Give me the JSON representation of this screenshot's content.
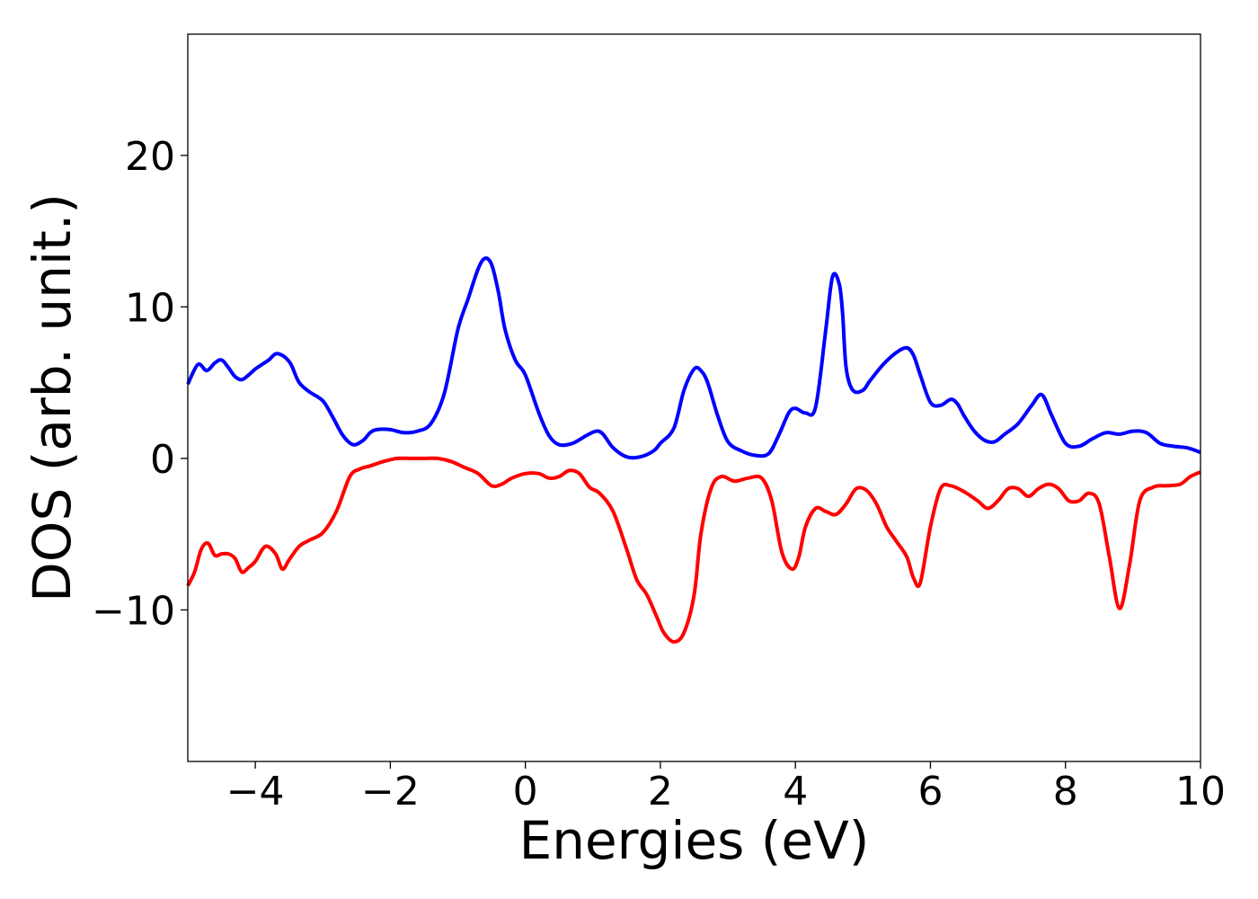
{
  "chart_data": {
    "type": "line",
    "title": "",
    "xlabel": "Energies (eV)",
    "ylabel": "DOS (arb. unit.)",
    "xlim": [
      -5,
      10
    ],
    "ylim": [
      -20,
      28
    ],
    "xticks": [
      -4,
      -2,
      0,
      2,
      4,
      6,
      8,
      10
    ],
    "yticks": [
      -10,
      0,
      10,
      20
    ],
    "x_tick_labels": [
      "−4",
      "−2",
      "0",
      "2",
      "4",
      "6",
      "8",
      "10"
    ],
    "y_tick_labels": [
      "−10",
      "0",
      "10",
      "20"
    ],
    "grid": false,
    "legend": "none",
    "series": [
      {
        "color": "#0000ff",
        "x": [
          -5.0,
          -4.85,
          -4.72,
          -4.6,
          -4.5,
          -4.4,
          -4.3,
          -4.2,
          -4.1,
          -4.0,
          -3.9,
          -3.8,
          -3.7,
          -3.6,
          -3.5,
          -3.45,
          -3.35,
          -3.2,
          -3.0,
          -2.85,
          -2.7,
          -2.55,
          -2.4,
          -2.3,
          -2.2,
          -2.0,
          -1.8,
          -1.6,
          -1.4,
          -1.2,
          -1.0,
          -0.85,
          -0.7,
          -0.6,
          -0.5,
          -0.4,
          -0.3,
          -0.15,
          0.0,
          0.2,
          0.35,
          0.5,
          0.7,
          0.9,
          1.05,
          1.15,
          1.3,
          1.5,
          1.7,
          1.9,
          2.0,
          2.2,
          2.35,
          2.5,
          2.6,
          2.7,
          2.85,
          3.0,
          3.2,
          3.4,
          3.6,
          3.75,
          3.9,
          4.0,
          4.15,
          4.3,
          4.45,
          4.55,
          4.65,
          4.7,
          4.75,
          4.85,
          5.0,
          5.1,
          5.3,
          5.5,
          5.65,
          5.75,
          5.85,
          6.0,
          6.15,
          6.3,
          6.4,
          6.5,
          6.65,
          6.8,
          6.95,
          7.1,
          7.3,
          7.5,
          7.65,
          7.8,
          8.0,
          8.2,
          8.4,
          8.6,
          8.8,
          9.0,
          9.2,
          9.4,
          9.6,
          9.8,
          10.0
        ],
        "y": [
          4.9,
          6.2,
          5.8,
          6.3,
          6.5,
          6.0,
          5.4,
          5.2,
          5.5,
          5.9,
          6.2,
          6.5,
          6.9,
          6.8,
          6.4,
          6.0,
          5.0,
          4.4,
          3.8,
          2.7,
          1.5,
          0.9,
          1.2,
          1.7,
          1.9,
          1.9,
          1.7,
          1.8,
          2.3,
          4.3,
          8.5,
          10.5,
          12.5,
          13.2,
          12.8,
          11.0,
          8.5,
          6.5,
          5.5,
          3.0,
          1.5,
          0.9,
          1.0,
          1.5,
          1.8,
          1.6,
          0.7,
          0.1,
          0.1,
          0.5,
          1.0,
          2.0,
          4.5,
          5.9,
          5.8,
          5.0,
          2.8,
          1.1,
          0.5,
          0.2,
          0.3,
          1.5,
          3.0,
          3.3,
          3.0,
          3.4,
          8.5,
          12.0,
          11.5,
          9.5,
          6.0,
          4.5,
          4.5,
          5.1,
          6.2,
          7.0,
          7.3,
          6.8,
          5.5,
          3.7,
          3.5,
          3.9,
          3.6,
          2.8,
          1.8,
          1.2,
          1.1,
          1.6,
          2.3,
          3.5,
          4.2,
          2.8,
          1.0,
          0.8,
          1.3,
          1.7,
          1.6,
          1.8,
          1.7,
          1.0,
          0.8,
          0.7,
          0.4
        ]
      },
      {
        "color": "#ff0000",
        "x": [
          -5.0,
          -4.9,
          -4.8,
          -4.7,
          -4.6,
          -4.5,
          -4.4,
          -4.3,
          -4.2,
          -4.1,
          -4.0,
          -3.85,
          -3.7,
          -3.6,
          -3.5,
          -3.35,
          -3.2,
          -3.0,
          -2.8,
          -2.6,
          -2.45,
          -2.3,
          -2.1,
          -1.9,
          -1.7,
          -1.5,
          -1.3,
          -1.1,
          -0.9,
          -0.7,
          -0.5,
          -0.35,
          -0.2,
          0.0,
          0.2,
          0.35,
          0.5,
          0.65,
          0.8,
          0.95,
          1.1,
          1.3,
          1.5,
          1.65,
          1.8,
          1.95,
          2.05,
          2.2,
          2.35,
          2.5,
          2.6,
          2.75,
          2.9,
          3.1,
          3.3,
          3.5,
          3.65,
          3.8,
          3.95,
          4.05,
          4.15,
          4.3,
          4.45,
          4.6,
          4.75,
          4.9,
          5.05,
          5.2,
          5.35,
          5.5,
          5.65,
          5.75,
          5.85,
          6.0,
          6.15,
          6.3,
          6.5,
          6.7,
          6.85,
          7.0,
          7.15,
          7.3,
          7.45,
          7.6,
          7.75,
          7.9,
          8.05,
          8.2,
          8.35,
          8.5,
          8.65,
          8.8,
          8.95,
          9.1,
          9.3,
          9.5,
          9.7,
          9.85,
          10.0
        ],
        "y": [
          -8.4,
          -7.5,
          -6.0,
          -5.6,
          -6.4,
          -6.3,
          -6.3,
          -6.6,
          -7.5,
          -7.2,
          -6.8,
          -5.8,
          -6.3,
          -7.3,
          -6.7,
          -5.8,
          -5.4,
          -4.9,
          -3.5,
          -1.2,
          -0.7,
          -0.5,
          -0.2,
          0.0,
          0.0,
          0.0,
          0.0,
          -0.2,
          -0.6,
          -1.0,
          -1.8,
          -1.7,
          -1.3,
          -1.0,
          -1.0,
          -1.3,
          -1.2,
          -0.8,
          -1.0,
          -1.9,
          -2.3,
          -3.5,
          -6.0,
          -8.0,
          -9.0,
          -10.5,
          -11.5,
          -12.1,
          -11.5,
          -9.0,
          -5.0,
          -2.0,
          -1.2,
          -1.5,
          -1.3,
          -1.3,
          -2.8,
          -6.2,
          -7.3,
          -6.5,
          -4.5,
          -3.3,
          -3.5,
          -3.7,
          -3.0,
          -2.0,
          -2.1,
          -3.0,
          -4.5,
          -5.5,
          -6.5,
          -7.9,
          -8.2,
          -4.5,
          -2.0,
          -1.8,
          -2.2,
          -2.8,
          -3.3,
          -2.8,
          -2.0,
          -2.0,
          -2.5,
          -2.0,
          -1.7,
          -2.0,
          -2.8,
          -2.8,
          -2.3,
          -3.0,
          -6.5,
          -9.9,
          -7.0,
          -2.8,
          -1.9,
          -1.8,
          -1.7,
          -1.2,
          -0.9
        ]
      }
    ]
  }
}
